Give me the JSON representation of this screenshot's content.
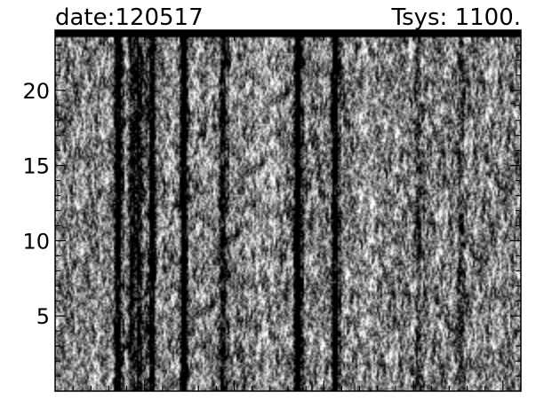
{
  "chart_data": {
    "type": "heatmap",
    "colormap": "grayscale",
    "title_left": "date:120517",
    "title_right": "Tsys:  1100.",
    "xlabel": "",
    "ylabel": "",
    "ylim": [
      0,
      24
    ],
    "yticks": [
      5,
      10,
      15,
      20
    ],
    "ytick_labels": [
      "5",
      "10",
      "15",
      "20"
    ],
    "x_tick_labels_shown": false,
    "dark_stripes": [
      {
        "x_frac": 0.135,
        "strength": 0.85
      },
      {
        "x_frac": 0.165,
        "strength": 0.55
      },
      {
        "x_frac": 0.18,
        "strength": 0.5
      },
      {
        "x_frac": 0.205,
        "strength": 0.75
      },
      {
        "x_frac": 0.275,
        "strength": 0.9
      },
      {
        "x_frac": 0.36,
        "strength": 0.6
      },
      {
        "x_frac": 0.52,
        "strength": 0.95
      },
      {
        "x_frac": 0.6,
        "strength": 0.8
      },
      {
        "x_frac": 0.78,
        "strength": 0.3
      },
      {
        "x_frac": 0.87,
        "strength": 0.3
      }
    ],
    "bright_stripes": [
      {
        "x_frac": 0.45,
        "strength": 0.4
      },
      {
        "x_frac": 0.67,
        "strength": 0.3
      }
    ],
    "top_band_dark": true
  }
}
